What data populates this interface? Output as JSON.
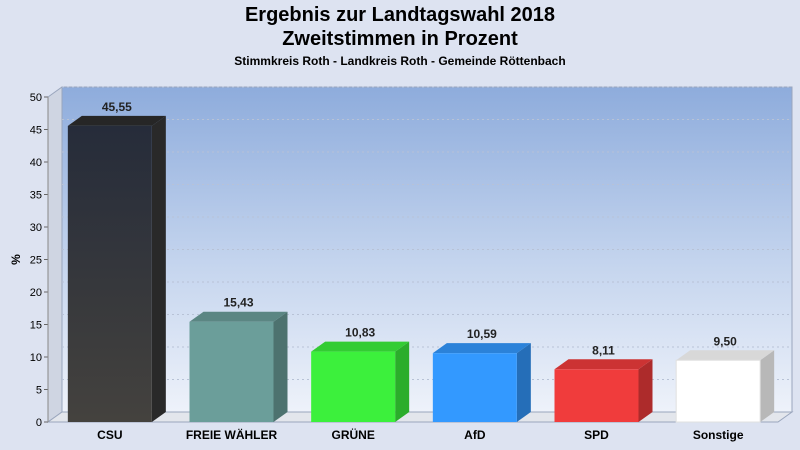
{
  "chart_data": {
    "type": "bar",
    "title": "Ergebnis zur Landtagswahl 2018",
    "subtitle": "Zweitstimmen in Prozent",
    "caption": "Stimmkreis Roth - Landkreis Roth - Gemeinde Röttenbach",
    "ylabel": "%",
    "xlabel": "",
    "ylim": [
      0,
      50
    ],
    "yticks": [
      0,
      5,
      10,
      15,
      20,
      25,
      30,
      35,
      40,
      45,
      50
    ],
    "grid": true,
    "categories": [
      "CSU",
      "FREIE WÄHLER",
      "GRÜNE",
      "AfD",
      "SPD",
      "Sonstige"
    ],
    "values": [
      45.55,
      15.43,
      10.83,
      10.59,
      8.11,
      9.5
    ],
    "value_labels": [
      "45,55",
      "15,43",
      "10,83",
      "10,59",
      "8,11",
      "9,50"
    ],
    "colors": [
      "#3a3a3a",
      "#6b9e9a",
      "#3cf03c",
      "#3399ff",
      "#f03c3c",
      "#ffffff"
    ]
  }
}
